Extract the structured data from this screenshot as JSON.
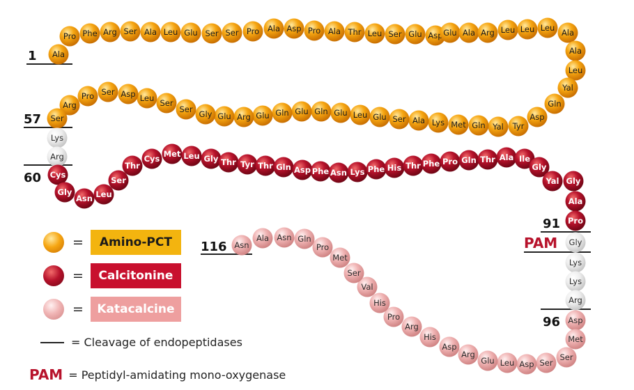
{
  "colors": {
    "amino_pct": "#f6a612",
    "calcitonine": "#b7122b",
    "katacalcine": "#ecadad",
    "cleavage_site": "#e6e6e6",
    "label_amino_box": "#f3b40f",
    "label_calcitonine_box": "#c8102e",
    "label_katacalcine_box": "#ee9f9f"
  },
  "chain": [
    {
      "aa": "Ala",
      "seg": "amino"
    },
    {
      "aa": "Pro",
      "seg": "amino"
    },
    {
      "aa": "Phe",
      "seg": "amino"
    },
    {
      "aa": "Arg",
      "seg": "amino"
    },
    {
      "aa": "Ser",
      "seg": "amino"
    },
    {
      "aa": "Ala",
      "seg": "amino"
    },
    {
      "aa": "Leu",
      "seg": "amino"
    },
    {
      "aa": "Glu",
      "seg": "amino"
    },
    {
      "aa": "Ser",
      "seg": "amino"
    },
    {
      "aa": "Ser",
      "seg": "amino"
    },
    {
      "aa": "Pro",
      "seg": "amino"
    },
    {
      "aa": "Ala",
      "seg": "amino"
    },
    {
      "aa": "Asp",
      "seg": "amino"
    },
    {
      "aa": "Pro",
      "seg": "amino"
    },
    {
      "aa": "Ala",
      "seg": "amino"
    },
    {
      "aa": "Thr",
      "seg": "amino"
    },
    {
      "aa": "Leu",
      "seg": "amino"
    },
    {
      "aa": "Ser",
      "seg": "amino"
    },
    {
      "aa": "Glu",
      "seg": "amino"
    },
    {
      "aa": "Asp",
      "seg": "amino"
    },
    {
      "aa": "Glu",
      "seg": "amino"
    },
    {
      "aa": "Ala",
      "seg": "amino"
    },
    {
      "aa": "Arg",
      "seg": "amino"
    },
    {
      "aa": "Leu",
      "seg": "amino"
    },
    {
      "aa": "Leu",
      "seg": "amino"
    },
    {
      "aa": "Leu",
      "seg": "amino"
    },
    {
      "aa": "Ala",
      "seg": "amino"
    },
    {
      "aa": "Ala",
      "seg": "amino"
    },
    {
      "aa": "Leu",
      "seg": "amino"
    },
    {
      "aa": "Yal",
      "seg": "amino"
    },
    {
      "aa": "Gln",
      "seg": "amino"
    },
    {
      "aa": "Asp",
      "seg": "amino"
    },
    {
      "aa": "Tyr",
      "seg": "amino"
    },
    {
      "aa": "Yal",
      "seg": "amino"
    },
    {
      "aa": "Gln",
      "seg": "amino"
    },
    {
      "aa": "Met",
      "seg": "amino"
    },
    {
      "aa": "Lys",
      "seg": "amino"
    },
    {
      "aa": "Ala",
      "seg": "amino"
    },
    {
      "aa": "Ser",
      "seg": "amino"
    },
    {
      "aa": "Glu",
      "seg": "amino"
    },
    {
      "aa": "Leu",
      "seg": "amino"
    },
    {
      "aa": "Glu",
      "seg": "amino"
    },
    {
      "aa": "Gln",
      "seg": "amino"
    },
    {
      "aa": "Glu",
      "seg": "amino"
    },
    {
      "aa": "Gln",
      "seg": "amino"
    },
    {
      "aa": "Glu",
      "seg": "amino"
    },
    {
      "aa": "Arg",
      "seg": "amino"
    },
    {
      "aa": "Glu",
      "seg": "amino"
    },
    {
      "aa": "Gly",
      "seg": "amino"
    },
    {
      "aa": "Ser",
      "seg": "amino"
    },
    {
      "aa": "Ser",
      "seg": "amino"
    },
    {
      "aa": "Leu",
      "seg": "amino"
    },
    {
      "aa": "Asp",
      "seg": "amino"
    },
    {
      "aa": "Ser",
      "seg": "amino"
    },
    {
      "aa": "Pro",
      "seg": "amino"
    },
    {
      "aa": "Arg",
      "seg": "amino"
    },
    {
      "aa": "Ser",
      "seg": "amino"
    },
    {
      "aa": "Lys",
      "seg": "cleave"
    },
    {
      "aa": "Arg",
      "seg": "cleave"
    },
    {
      "aa": "Cys",
      "seg": "calc"
    },
    {
      "aa": "Gly",
      "seg": "calc"
    },
    {
      "aa": "Asn",
      "seg": "calc"
    },
    {
      "aa": "Leu",
      "seg": "calc"
    },
    {
      "aa": "Ser",
      "seg": "calc"
    },
    {
      "aa": "Thr",
      "seg": "calc"
    },
    {
      "aa": "Cys",
      "seg": "calc"
    },
    {
      "aa": "Met",
      "seg": "calc"
    },
    {
      "aa": "Leu",
      "seg": "calc"
    },
    {
      "aa": "Gly",
      "seg": "calc"
    },
    {
      "aa": "Thr",
      "seg": "calc"
    },
    {
      "aa": "Tyr",
      "seg": "calc"
    },
    {
      "aa": "Thr",
      "seg": "calc"
    },
    {
      "aa": "Gln",
      "seg": "calc"
    },
    {
      "aa": "Asp",
      "seg": "calc"
    },
    {
      "aa": "Phe",
      "seg": "calc"
    },
    {
      "aa": "Asn",
      "seg": "calc"
    },
    {
      "aa": "Lys",
      "seg": "calc"
    },
    {
      "aa": "Phe",
      "seg": "calc"
    },
    {
      "aa": "His",
      "seg": "calc"
    },
    {
      "aa": "Thr",
      "seg": "calc"
    },
    {
      "aa": "Phe",
      "seg": "calc"
    },
    {
      "aa": "Pro",
      "seg": "calc"
    },
    {
      "aa": "Gln",
      "seg": "calc"
    },
    {
      "aa": "Thr",
      "seg": "calc"
    },
    {
      "aa": "Ala",
      "seg": "calc"
    },
    {
      "aa": "Ile",
      "seg": "calc"
    },
    {
      "aa": "Gly",
      "seg": "calc"
    },
    {
      "aa": "Yal",
      "seg": "calc"
    },
    {
      "aa": "Gly",
      "seg": "calc"
    },
    {
      "aa": "Ala",
      "seg": "calc"
    },
    {
      "aa": "Pro",
      "seg": "calc"
    },
    {
      "aa": "Gly",
      "seg": "cleave"
    },
    {
      "aa": "Lys",
      "seg": "cleave"
    },
    {
      "aa": "Lys",
      "seg": "cleave"
    },
    {
      "aa": "Arg",
      "seg": "cleave"
    },
    {
      "aa": "Asp",
      "seg": "kata"
    },
    {
      "aa": "Met",
      "seg": "kata"
    },
    {
      "aa": "Ser",
      "seg": "kata"
    },
    {
      "aa": "Ser",
      "seg": "kata"
    },
    {
      "aa": "Asp",
      "seg": "kata"
    },
    {
      "aa": "Leu",
      "seg": "kata"
    },
    {
      "aa": "Glu",
      "seg": "kata"
    },
    {
      "aa": "Arg",
      "seg": "kata"
    },
    {
      "aa": "Asp",
      "seg": "kata"
    },
    {
      "aa": "His",
      "seg": "kata"
    },
    {
      "aa": "Arg",
      "seg": "kata"
    },
    {
      "aa": "Pro",
      "seg": "kata"
    },
    {
      "aa": "His",
      "seg": "kata"
    },
    {
      "aa": "Val",
      "seg": "kata"
    },
    {
      "aa": "Ser",
      "seg": "kata"
    },
    {
      "aa": "Met",
      "seg": "kata"
    },
    {
      "aa": "Pro",
      "seg": "kata"
    },
    {
      "aa": "Gln",
      "seg": "kata"
    },
    {
      "aa": "Asn",
      "seg": "kata"
    },
    {
      "aa": "Ala",
      "seg": "kata"
    },
    {
      "aa": "Asn",
      "seg": "kata"
    }
  ],
  "position_labels": [
    "1",
    "57",
    "60",
    "91",
    "96",
    "116"
  ],
  "pam_label": "PAM",
  "legend": {
    "equals": "=",
    "amino_label": "Amino-PCT",
    "calcitonine_label": "Calcitonine",
    "katacalcine_label": "Katacalcine",
    "cleavage_text": "= Cleavage of endopeptidases",
    "pam_abbr": "PAM",
    "pam_text": "= Peptidyl-amidating mono-oxygenase"
  }
}
